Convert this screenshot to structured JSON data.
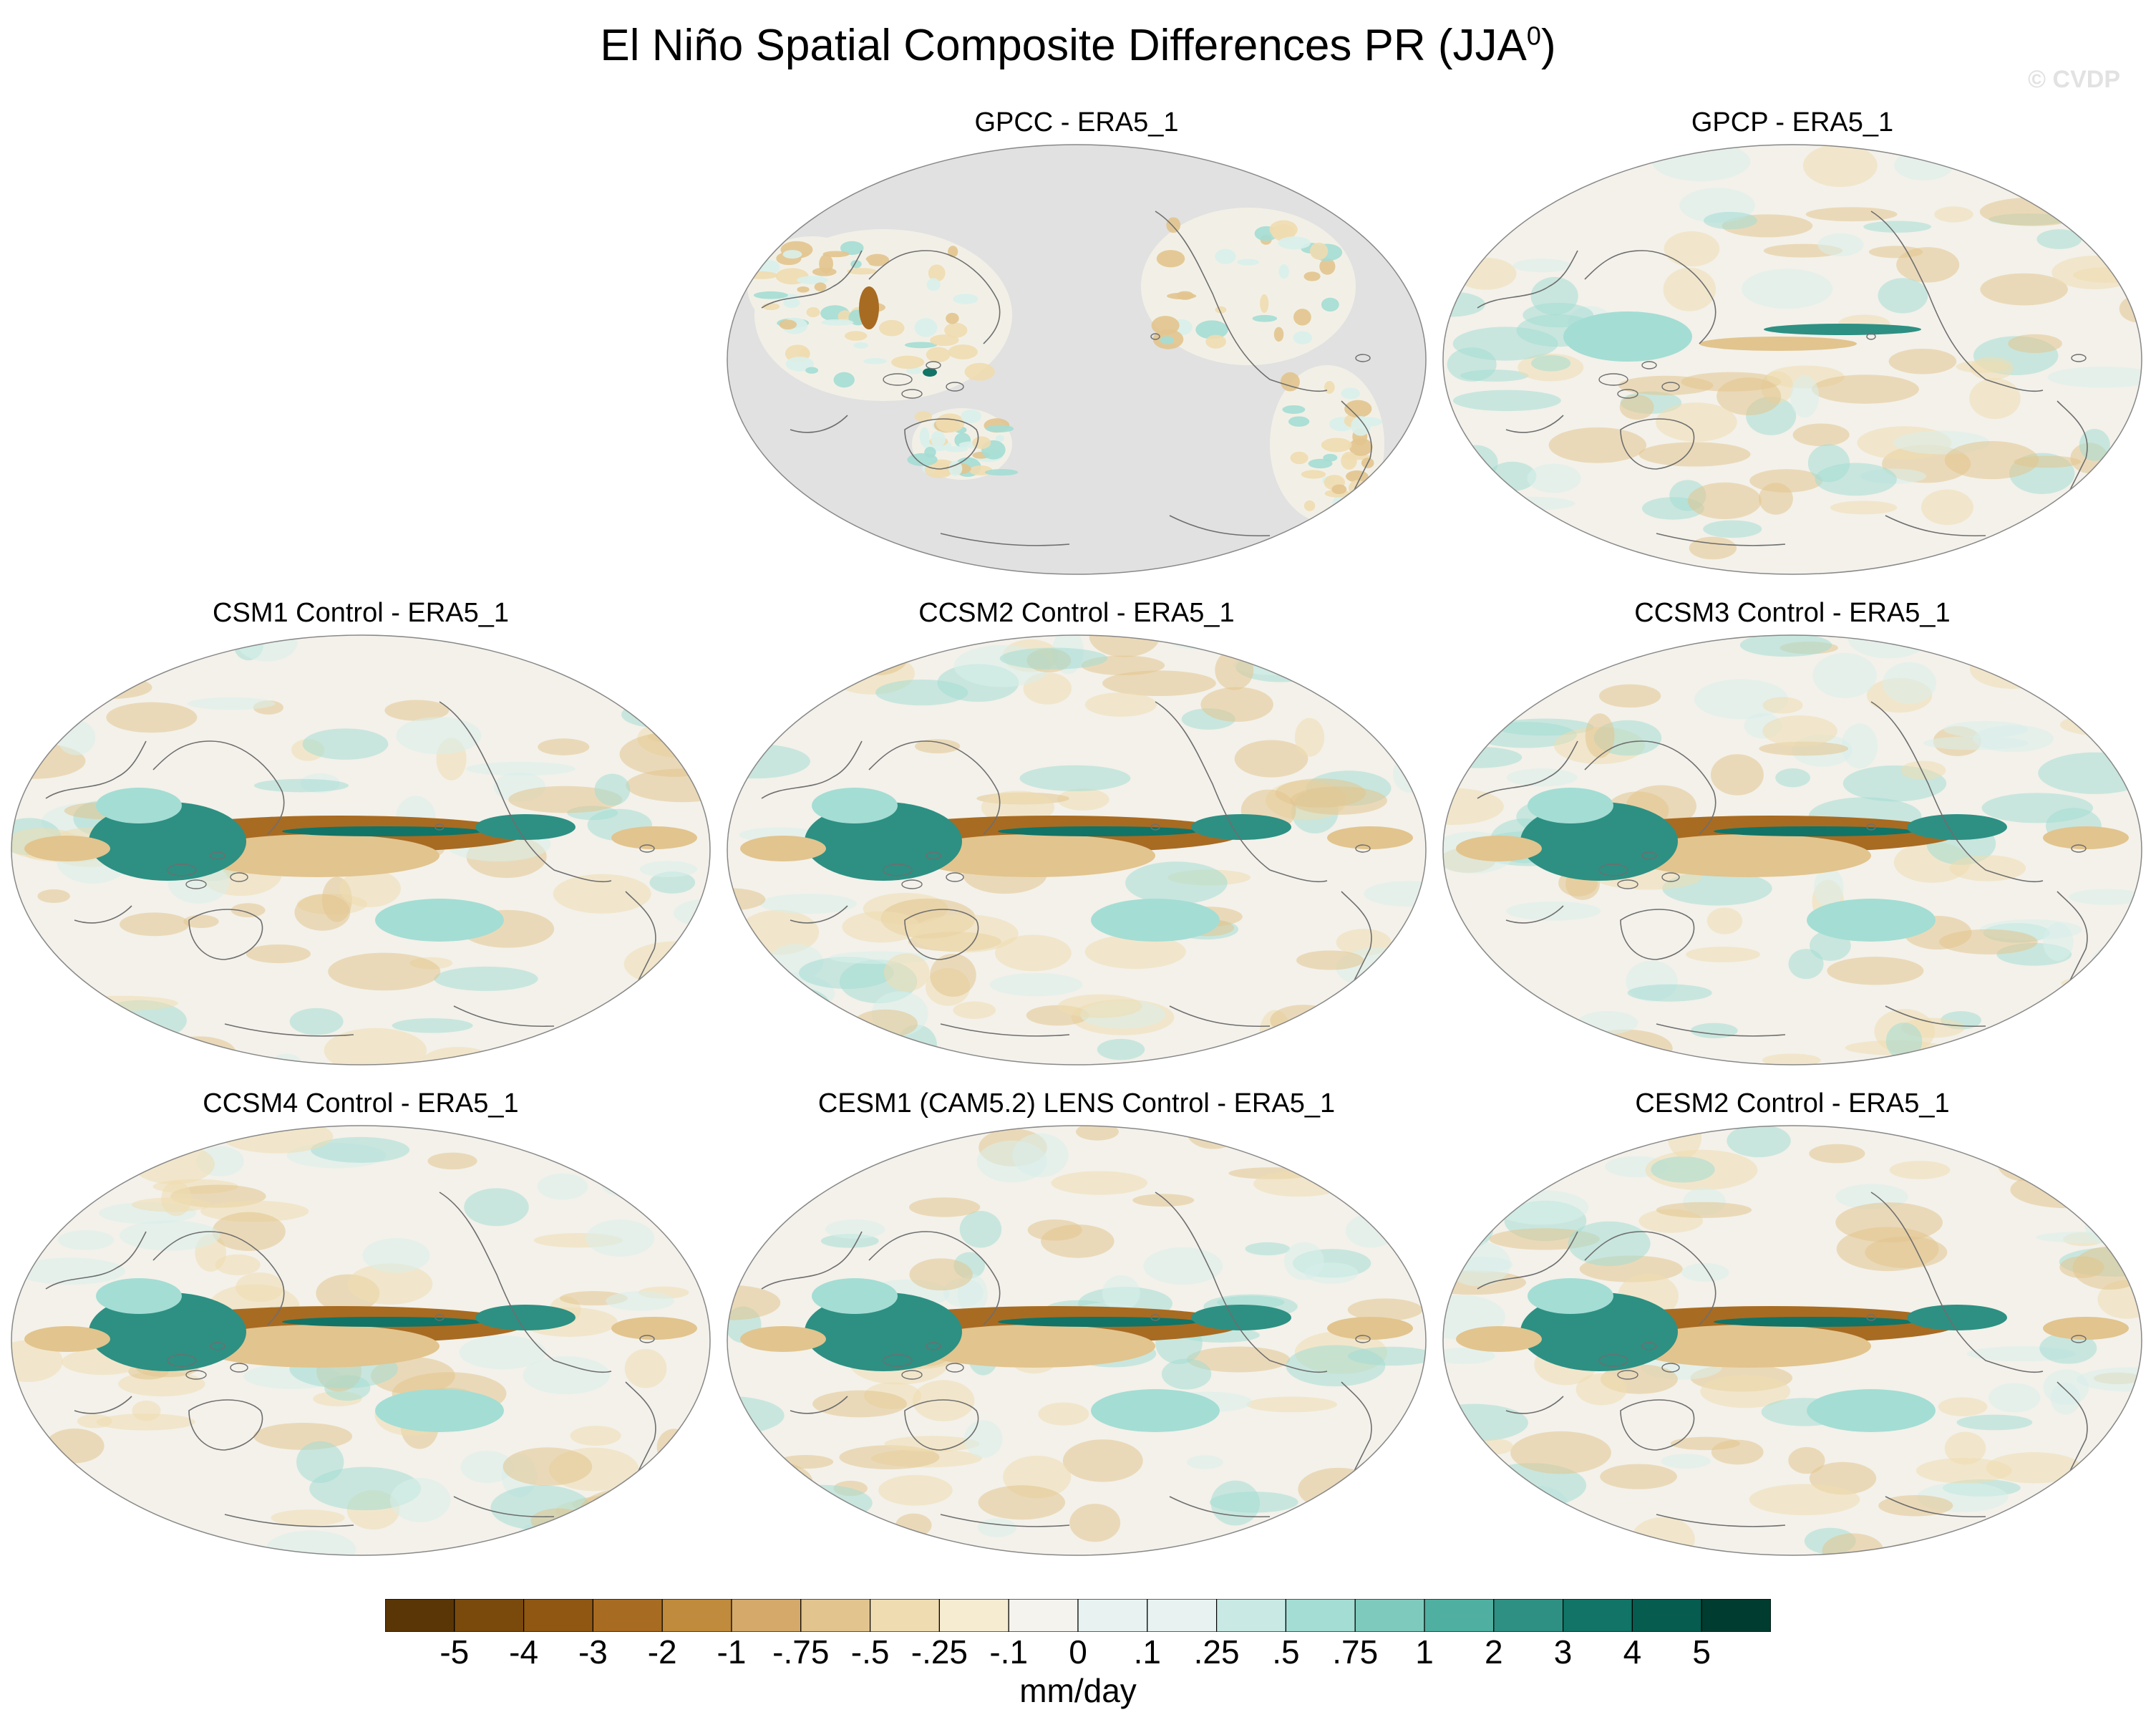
{
  "figure": {
    "title": "El Niño Spatial Composite Differences PR (JJA",
    "title_sup": "0",
    "title_close": ")",
    "watermark": "© CVDP"
  },
  "panels": [
    {
      "title": "GPCC - ERA5_1",
      "land_only": true
    },
    {
      "title": "GPCP - ERA5_1",
      "land_only": false
    },
    {
      "title": "CSM1 Control - ERA5_1",
      "land_only": false
    },
    {
      "title": "CCSM2 Control - ERA5_1",
      "land_only": false
    },
    {
      "title": "CCSM3 Control - ERA5_1",
      "land_only": false
    },
    {
      "title": "CCSM4 Control - ERA5_1",
      "land_only": false
    },
    {
      "title": "CESM1 (CAM5.2) LENS Control - ERA5_1",
      "land_only": false
    },
    {
      "title": "CESM2 Control - ERA5_1",
      "land_only": false
    }
  ],
  "colorbar": {
    "labels": [
      "-5",
      "-4",
      "-3",
      "-2",
      "-1",
      "-.75",
      "-.5",
      "-.25",
      "-.1",
      "0",
      ".1",
      ".25",
      ".5",
      ".75",
      "1",
      "2",
      "3",
      "4",
      "5"
    ],
    "colors": [
      "#5a3505",
      "#7a4a0c",
      "#8f5712",
      "#a86b22",
      "#c08b3c",
      "#d4a96a",
      "#e2c48e",
      "#efdcb0",
      "#f5ecd2",
      "#f5f3ee",
      "#e8f3f1",
      "#c9eae4",
      "#a4ddd4",
      "#7ecbbd",
      "#4fb0a1",
      "#2d9083",
      "#117466",
      "#055c4f",
      "#003c30"
    ],
    "units": "mm/day"
  },
  "palette": {
    "background": "#ffffff",
    "land_mask": "#e1e1e1",
    "coast": "#6e6e6e",
    "brown": "#a86b22",
    "brown_dark": "#8f5712",
    "brown_light": "#e2c48e",
    "tan": "#efdcb0",
    "teal": "#2d9083",
    "teal_dark": "#117466",
    "teal_light": "#a4ddd4",
    "teal_pale": "#d9efeb",
    "neutral": "#f5f3ee"
  }
}
